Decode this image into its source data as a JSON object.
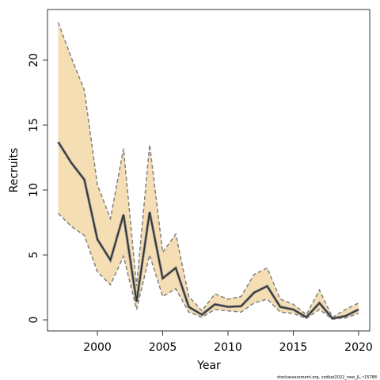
{
  "chart_data": {
    "type": "line",
    "xlabel": "Year",
    "ylabel": "Recruits",
    "footnote": "stockassessment.org, codkat2022_new_JL, r15788",
    "x": [
      1997,
      1998,
      1999,
      2000,
      2001,
      2002,
      2003,
      2004,
      2005,
      2006,
      2007,
      2008,
      2009,
      2010,
      2011,
      2012,
      2013,
      2014,
      2015,
      2016,
      2017,
      2018,
      2019,
      2020
    ],
    "values": [
      13.7,
      12.1,
      10.8,
      6.2,
      4.6,
      8.1,
      1.4,
      8.3,
      3.2,
      4.0,
      1.0,
      0.4,
      1.2,
      1.0,
      1.05,
      2.1,
      2.6,
      1.0,
      0.8,
      0.2,
      1.3,
      0.1,
      0.3,
      0.8
    ],
    "upper": [
      22.9,
      20.2,
      17.7,
      10.4,
      7.8,
      13.2,
      2.6,
      13.5,
      5.2,
      6.6,
      1.8,
      0.7,
      2.0,
      1.6,
      1.8,
      3.5,
      4.0,
      1.6,
      1.2,
      0.4,
      2.3,
      0.2,
      0.8,
      1.3
    ],
    "lower": [
      8.2,
      7.2,
      6.5,
      3.7,
      2.7,
      4.9,
      0.8,
      5.0,
      1.8,
      2.4,
      0.6,
      0.2,
      0.8,
      0.7,
      0.6,
      1.3,
      1.6,
      0.6,
      0.5,
      0.1,
      0.8,
      0.05,
      0.15,
      0.5
    ],
    "color": "#333333",
    "band_color": "#f5deb3",
    "band_edge_color": "#808080",
    "xlim": [
      1996.18,
      2020.85
    ],
    "ylim": [
      -0.85,
      23.9
    ],
    "xticks": [
      2000,
      2005,
      2010,
      2015,
      2020
    ],
    "yticks": [
      0,
      5,
      10,
      15,
      20
    ]
  }
}
